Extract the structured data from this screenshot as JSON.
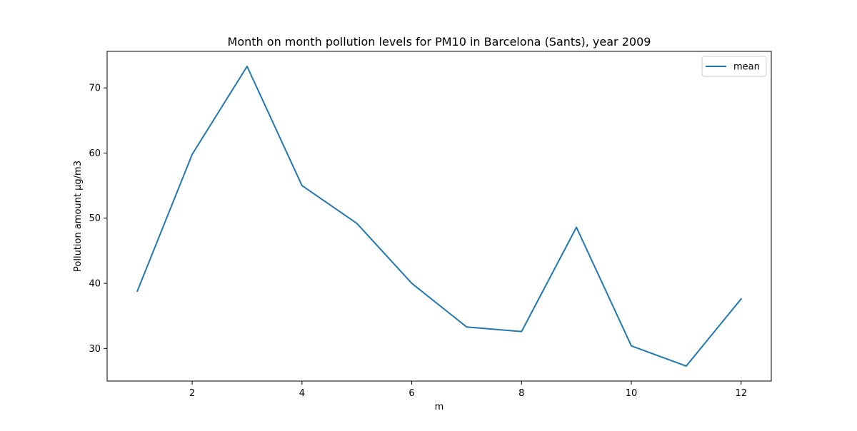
{
  "chart_data": {
    "type": "line",
    "title": "Month on month pollution levels for PM10 in Barcelona (Sants), year 2009",
    "xlabel": "m",
    "ylabel": "Pollution amount µg/m3",
    "x": [
      1,
      2,
      3,
      4,
      5,
      6,
      7,
      8,
      9,
      10,
      11,
      12
    ],
    "series": [
      {
        "name": "mean",
        "color": "#1f77b4",
        "values": [
          38.8,
          59.8,
          73.3,
          55.0,
          49.2,
          40.0,
          33.3,
          32.6,
          48.6,
          30.4,
          27.3,
          37.6
        ]
      }
    ],
    "xticks": [
      2,
      4,
      6,
      8,
      10,
      12
    ],
    "yticks": [
      30,
      40,
      50,
      60,
      70
    ],
    "xlim": [
      0.45,
      12.55
    ],
    "ylim": [
      25.0,
      75.6
    ],
    "grid": false,
    "legend": {
      "position": "top-right",
      "entries": [
        "mean"
      ]
    }
  }
}
